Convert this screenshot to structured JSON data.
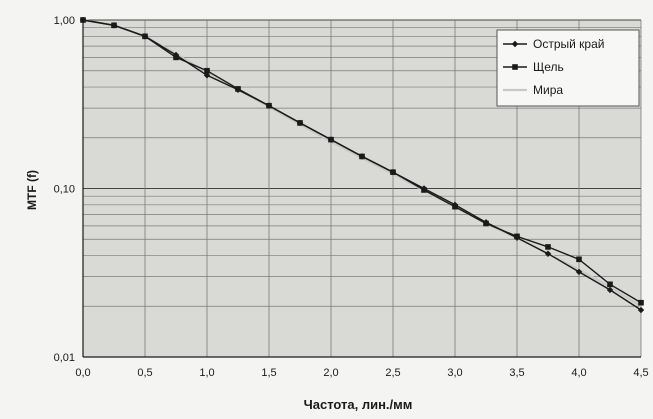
{
  "chart_data": {
    "type": "line",
    "title": "",
    "xlabel": "Частота, лин./мм",
    "ylabel": "MTF (f)",
    "xlim": [
      0,
      4.5
    ],
    "ylim": [
      0.01,
      1
    ],
    "yscale": "log",
    "grid": true,
    "legend_position": "top-right",
    "x_ticks": [
      {
        "value": 0,
        "label": "0,0"
      },
      {
        "value": 0.5,
        "label": "0,5"
      },
      {
        "value": 1,
        "label": "1,0"
      },
      {
        "value": 1.5,
        "label": "1,5"
      },
      {
        "value": 2,
        "label": "2,0"
      },
      {
        "value": 2.5,
        "label": "2,5"
      },
      {
        "value": 3,
        "label": "3,0"
      },
      {
        "value": 3.5,
        "label": "3,5"
      },
      {
        "value": 4,
        "label": "4,0"
      },
      {
        "value": 4.5,
        "label": "4,5"
      }
    ],
    "y_ticks": [
      {
        "value": 1,
        "label": "1,00"
      },
      {
        "value": 0.1,
        "label": "0,10"
      },
      {
        "value": 0.01,
        "label": "0,01"
      }
    ],
    "series": [
      {
        "name": "Острый край",
        "color": "#1a1a1a",
        "marker": "diamond",
        "x": [
          0,
          0.25,
          0.5,
          0.75,
          1.0,
          1.25,
          1.5,
          1.75,
          2.0,
          2.25,
          2.5,
          2.75,
          3.0,
          3.25,
          3.5,
          3.75,
          4.0,
          4.25,
          4.5
        ],
        "y": [
          1.0,
          0.93,
          0.8,
          0.62,
          0.47,
          0.385,
          0.31,
          0.245,
          0.195,
          0.155,
          0.125,
          0.1,
          0.08,
          0.063,
          0.051,
          0.041,
          0.032,
          0.025,
          0.019
        ]
      },
      {
        "name": "Щель",
        "color": "#1a1a1a",
        "marker": "square",
        "x": [
          0,
          0.25,
          0.5,
          0.75,
          1.0,
          1.25,
          1.5,
          1.75,
          2.0,
          2.25,
          2.5,
          2.75,
          3.0,
          3.25,
          3.5,
          3.75,
          4.0,
          4.25,
          4.5
        ],
        "y": [
          1.0,
          0.93,
          0.8,
          0.6,
          0.5,
          0.39,
          0.31,
          0.245,
          0.195,
          0.155,
          0.125,
          0.098,
          0.078,
          0.062,
          0.052,
          0.045,
          0.038,
          0.027,
          0.021
        ]
      },
      {
        "name": "Мира",
        "color": "#c8c8c8",
        "marker": "none",
        "x": [
          0,
          0.25,
          0.5,
          0.75,
          1.0,
          1.25,
          1.5,
          1.75,
          2.0,
          2.25,
          2.5,
          2.75,
          3.0,
          3.25,
          3.5,
          3.75,
          4.0,
          4.25,
          4.5
        ],
        "y": [
          1.0,
          0.93,
          0.8,
          0.63,
          0.49,
          0.385,
          0.305,
          0.24,
          0.19,
          0.152,
          0.122,
          0.097,
          0.078,
          0.062,
          0.051,
          0.041,
          0.033,
          0.026,
          0.02
        ]
      }
    ]
  },
  "colors": {
    "plot_background": "#d9d9d6",
    "grid": "#7a7a7a",
    "axis": "#1a1a1a"
  }
}
